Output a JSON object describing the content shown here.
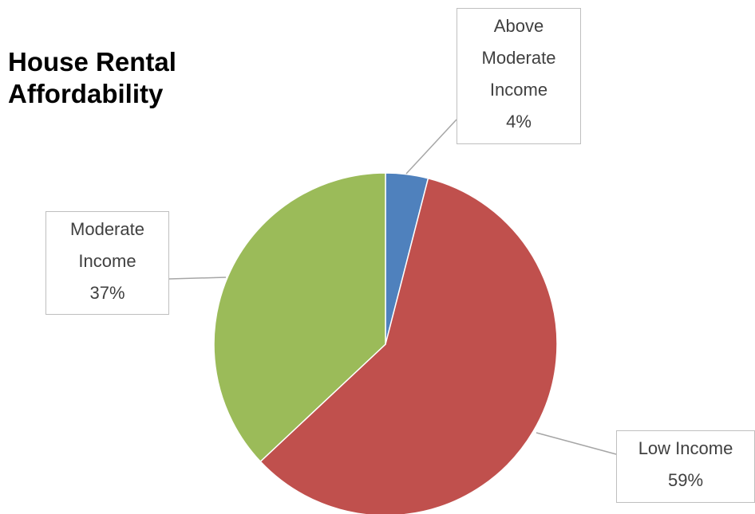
{
  "chart_data": {
    "type": "pie",
    "title": "House Rental Affordability",
    "categories": [
      "Above Moderate Income",
      "Low Income",
      "Moderate Income"
    ],
    "values": [
      4,
      59,
      37
    ],
    "value_labels": [
      "4%",
      "59%",
      "37%"
    ],
    "colors": [
      "#4f81bd",
      "#c0504d",
      "#9bbb59"
    ]
  }
}
